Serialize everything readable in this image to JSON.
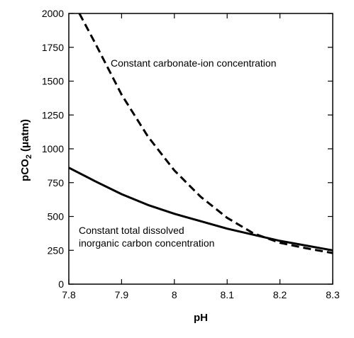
{
  "chart_data": {
    "type": "line",
    "title": "",
    "xlabel": "pH",
    "ylabel_parts": {
      "main": "pCO",
      "sub": "2",
      "unit": "(μatm)"
    },
    "xlim": [
      7.8,
      8.3
    ],
    "ylim": [
      0,
      2000
    ],
    "x_ticks": [
      "7.8",
      "7.9",
      "8",
      "8.1",
      "8.2",
      "8.3"
    ],
    "y_ticks": [
      "0",
      "250",
      "500",
      "750",
      "1000",
      "1250",
      "1500",
      "1750",
      "2000"
    ],
    "grid": false,
    "legend": "none",
    "series": [
      {
        "style": "solid",
        "x": [
          7.8,
          7.85,
          7.9,
          7.95,
          8.0,
          8.05,
          8.1,
          8.15,
          8.2,
          8.25,
          8.3
        ],
        "y": [
          860,
          760,
          665,
          585,
          520,
          465,
          410,
          365,
          320,
          285,
          250
        ]
      },
      {
        "style": "dashed",
        "x": [
          7.82,
          7.85,
          7.9,
          7.95,
          8.0,
          8.05,
          8.1,
          8.15,
          8.2,
          8.25,
          8.3
        ],
        "y": [
          2000,
          1780,
          1400,
          1090,
          840,
          645,
          490,
          375,
          305,
          265,
          230
        ]
      }
    ],
    "annotations": [
      {
        "id": "dashed",
        "text": "Constant carbonate-ion concentration"
      },
      {
        "id": "solid_1",
        "text": "Constant total dissolved"
      },
      {
        "id": "solid_2",
        "text": "inorganic carbon concentration"
      }
    ]
  }
}
